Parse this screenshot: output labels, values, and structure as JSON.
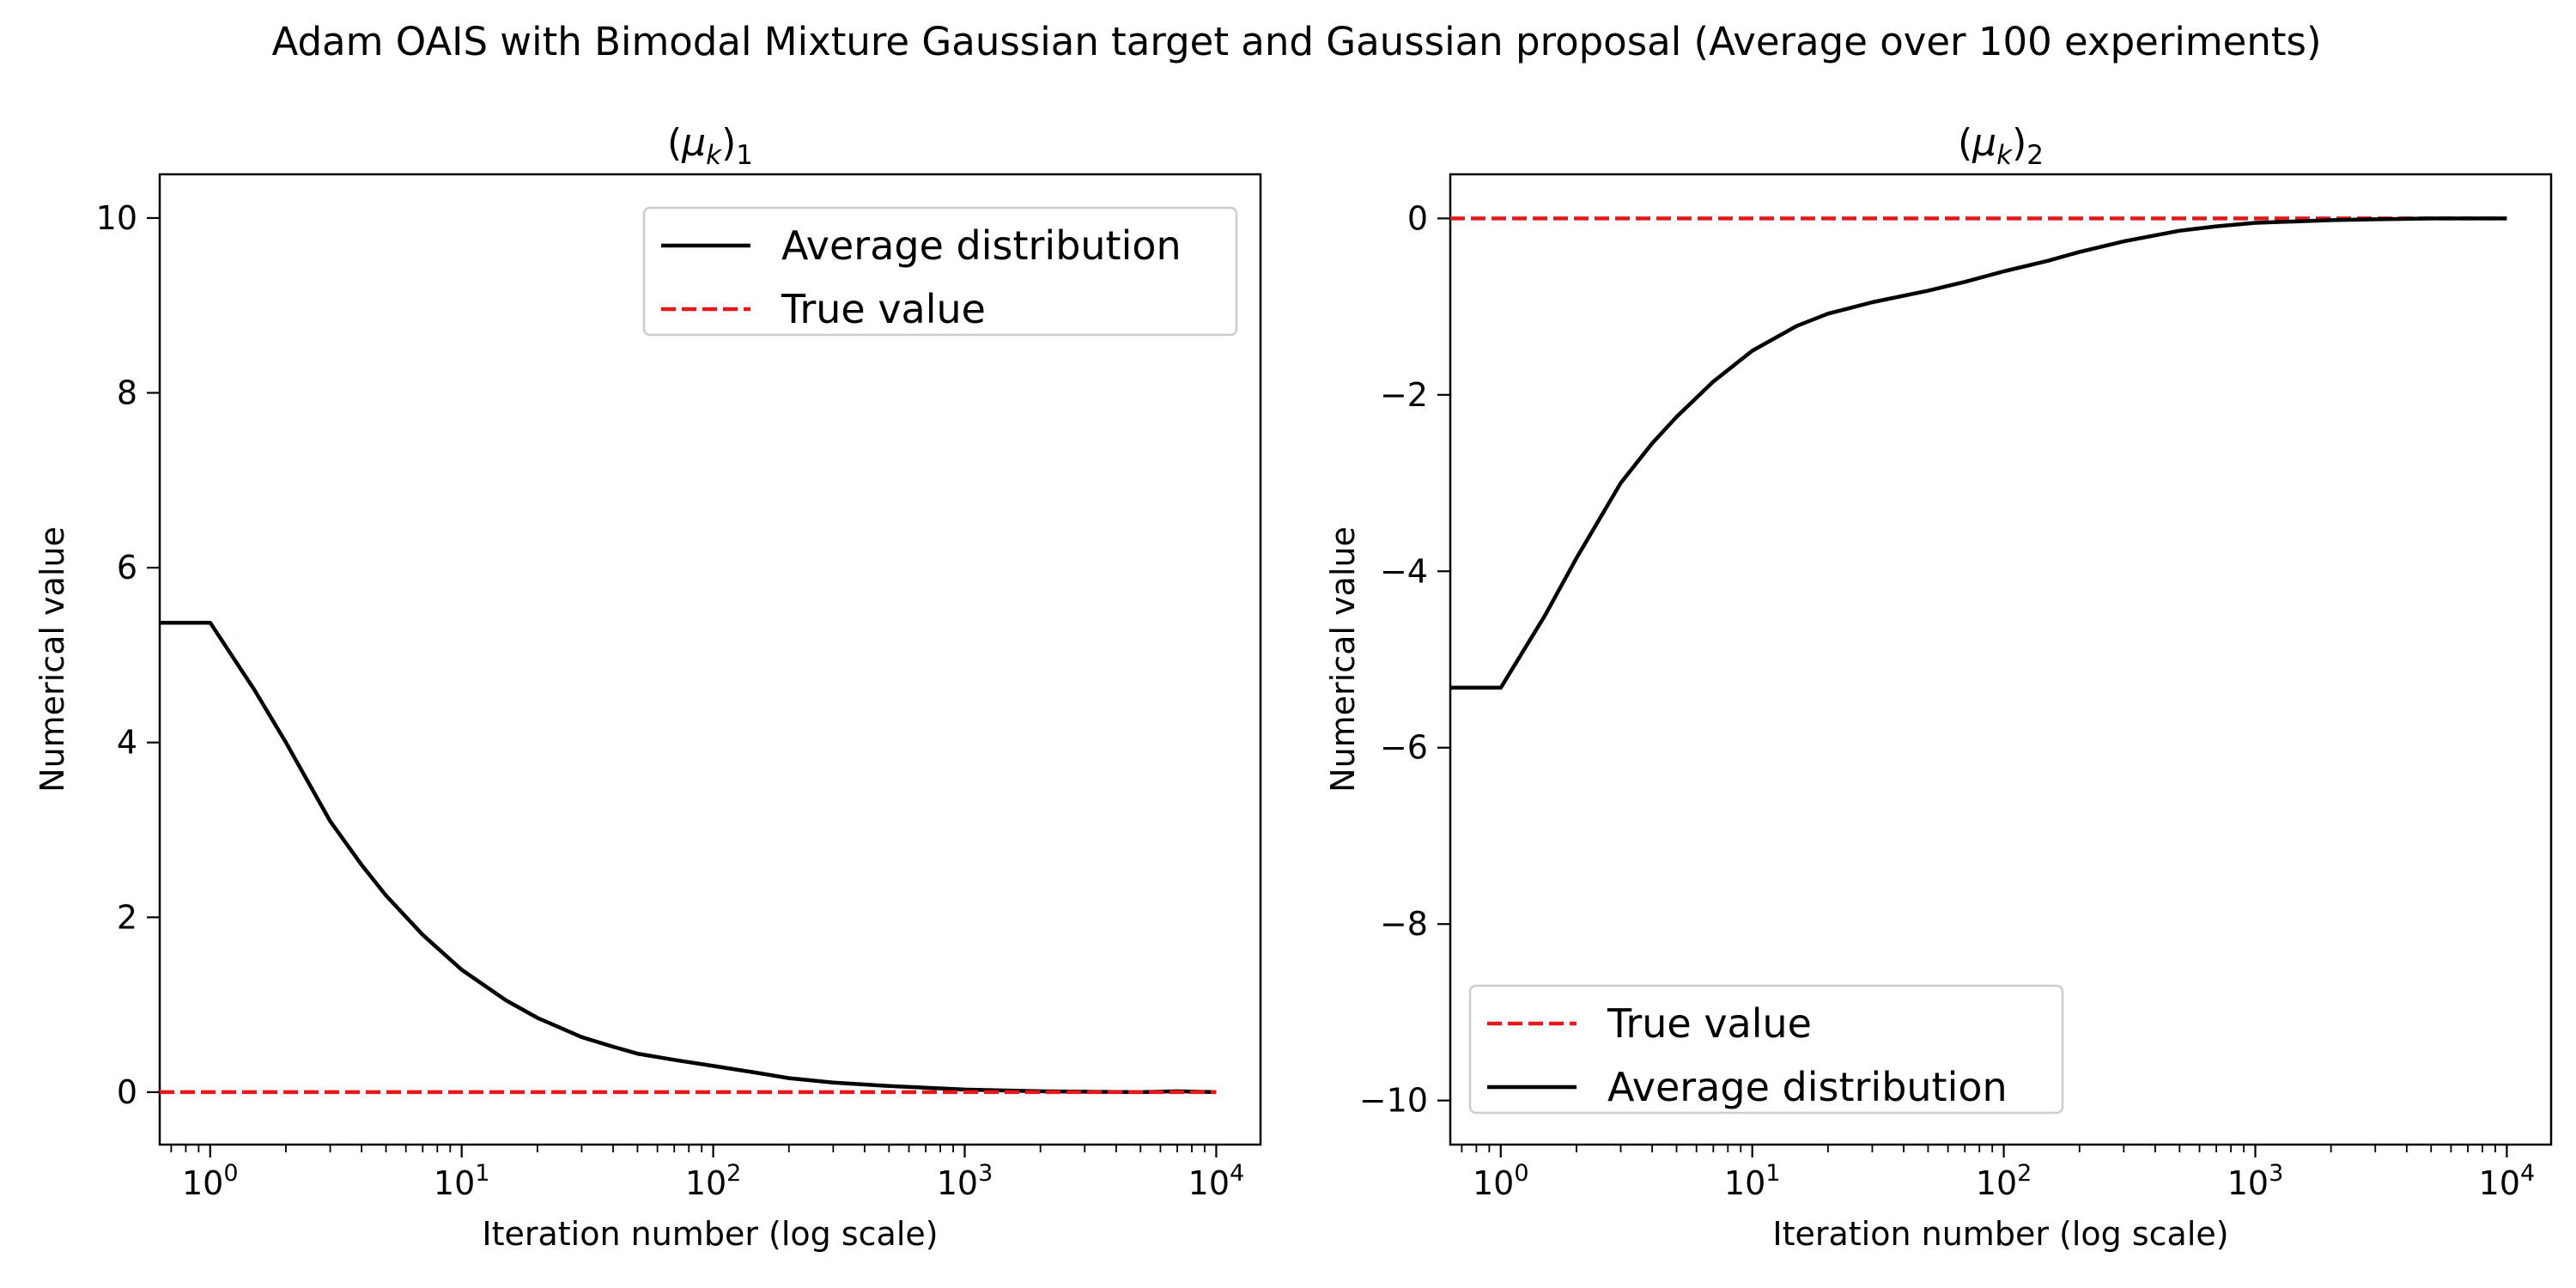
{
  "figure": {
    "suptitle": "Adam OAIS with Bimodal Mixture Gaussian target and Gaussian proposal (Average over 100 experiments)"
  },
  "chart_data": [
    {
      "type": "line",
      "title": "(μk)1",
      "xlabel": "Iteration number (log scale)",
      "ylabel": "Numerical value",
      "xscale": "log",
      "xlim": [
        0.63,
        15000
      ],
      "ylim": [
        -0.6,
        10.5
      ],
      "xticks": [
        1,
        10,
        100,
        1000,
        10000
      ],
      "xtick_labels": [
        {
          "base": "10",
          "exp": "0"
        },
        {
          "base": "10",
          "exp": "1"
        },
        {
          "base": "10",
          "exp": "2"
        },
        {
          "base": "10",
          "exp": "3"
        },
        {
          "base": "10",
          "exp": "4"
        }
      ],
      "yticks": [
        0,
        2,
        4,
        6,
        8,
        10
      ],
      "ytick_labels": [
        "0",
        "2",
        "4",
        "6",
        "8",
        "10"
      ],
      "legend_position": "upper right",
      "series": [
        {
          "name": "Average distribution",
          "color": "#000000",
          "style": "solid",
          "points": [
            [
              0.63,
              5.37
            ],
            [
              1,
              5.37
            ],
            [
              1.5,
              4.6
            ],
            [
              2,
              4.0
            ],
            [
              3,
              3.1
            ],
            [
              4,
              2.6
            ],
            [
              5,
              2.25
            ],
            [
              7,
              1.8
            ],
            [
              10,
              1.4
            ],
            [
              15,
              1.05
            ],
            [
              20,
              0.85
            ],
            [
              30,
              0.63
            ],
            [
              40,
              0.52
            ],
            [
              50,
              0.44
            ],
            [
              70,
              0.37
            ],
            [
              100,
              0.3
            ],
            [
              150,
              0.22
            ],
            [
              200,
              0.16
            ],
            [
              300,
              0.11
            ],
            [
              500,
              0.07
            ],
            [
              700,
              0.05
            ],
            [
              1000,
              0.03
            ],
            [
              2000,
              0.01
            ],
            [
              3000,
              0.005
            ],
            [
              5000,
              0.0
            ],
            [
              7000,
              0.01
            ],
            [
              10000,
              0.0
            ]
          ]
        },
        {
          "name": "True value",
          "color": "#e31a1c",
          "style": "dashed",
          "points": [
            [
              0.63,
              0
            ],
            [
              10000,
              0
            ]
          ]
        }
      ]
    },
    {
      "type": "line",
      "title": "(μk)2",
      "xlabel": "Iteration number (log scale)",
      "ylabel": "Numerical value",
      "xscale": "log",
      "xlim": [
        0.63,
        15000
      ],
      "ylim": [
        -10.5,
        0.5
      ],
      "xticks": [
        1,
        10,
        100,
        1000,
        10000
      ],
      "xtick_labels": [
        {
          "base": "10",
          "exp": "0"
        },
        {
          "base": "10",
          "exp": "1"
        },
        {
          "base": "10",
          "exp": "2"
        },
        {
          "base": "10",
          "exp": "3"
        },
        {
          "base": "10",
          "exp": "4"
        }
      ],
      "yticks": [
        0,
        -2,
        -4,
        -6,
        -8,
        -10
      ],
      "ytick_labels": [
        "0",
        "−2",
        "−4",
        "−6",
        "−8",
        "−10"
      ],
      "legend_position": "lower left",
      "series": [
        {
          "name": "True value",
          "color": "#e31a1c",
          "style": "dashed",
          "points": [
            [
              0.63,
              0
            ],
            [
              10000,
              0
            ]
          ]
        },
        {
          "name": "Average distribution",
          "color": "#000000",
          "style": "solid",
          "points": [
            [
              0.63,
              -5.32
            ],
            [
              1,
              -5.32
            ],
            [
              1.5,
              -4.5
            ],
            [
              2,
              -3.85
            ],
            [
              3,
              -3.0
            ],
            [
              4,
              -2.55
            ],
            [
              5,
              -2.25
            ],
            [
              7,
              -1.85
            ],
            [
              10,
              -1.5
            ],
            [
              15,
              -1.22
            ],
            [
              20,
              -1.08
            ],
            [
              30,
              -0.95
            ],
            [
              50,
              -0.82
            ],
            [
              70,
              -0.72
            ],
            [
              100,
              -0.6
            ],
            [
              150,
              -0.48
            ],
            [
              200,
              -0.38
            ],
            [
              300,
              -0.26
            ],
            [
              500,
              -0.14
            ],
            [
              700,
              -0.09
            ],
            [
              1000,
              -0.05
            ],
            [
              2000,
              -0.02
            ],
            [
              3000,
              -0.01
            ],
            [
              5000,
              0.0
            ],
            [
              10000,
              0.0
            ]
          ]
        }
      ]
    }
  ]
}
